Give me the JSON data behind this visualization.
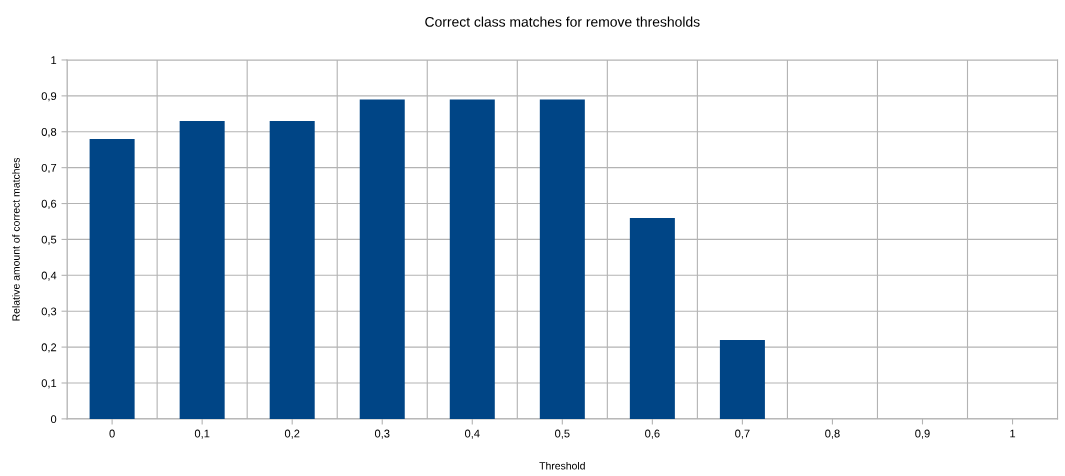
{
  "chart_data": {
    "type": "bar",
    "title": "Correct class matches for remove thresholds",
    "xlabel": "Threshold",
    "ylabel": "Relative amount of correct matches",
    "categories": [
      "0",
      "0,1",
      "0,2",
      "0,3",
      "0,4",
      "0,5",
      "0,6",
      "0,7",
      "0,8",
      "0,9",
      "1"
    ],
    "values": [
      0.78,
      0.83,
      0.83,
      0.89,
      0.89,
      0.89,
      0.56,
      0.22,
      0,
      0,
      0
    ],
    "color": "#004586",
    "ylim": [
      0,
      1
    ],
    "yticks": [
      0,
      {
        "value": 0.1,
        "label": "0,1"
      },
      {
        "value": 0.2,
        "label": "0,2"
      },
      {
        "value": 0.3,
        "label": "0,3"
      },
      {
        "value": 0.4,
        "label": "0,4"
      },
      {
        "value": 0.5,
        "label": "0,5"
      },
      {
        "value": 0.6,
        "label": "0,6"
      },
      {
        "value": 0.7,
        "label": "0,7"
      },
      {
        "value": 0.8,
        "label": "0,8"
      },
      {
        "value": 0.9,
        "label": "0,9"
      },
      1
    ],
    "grid": true
  }
}
